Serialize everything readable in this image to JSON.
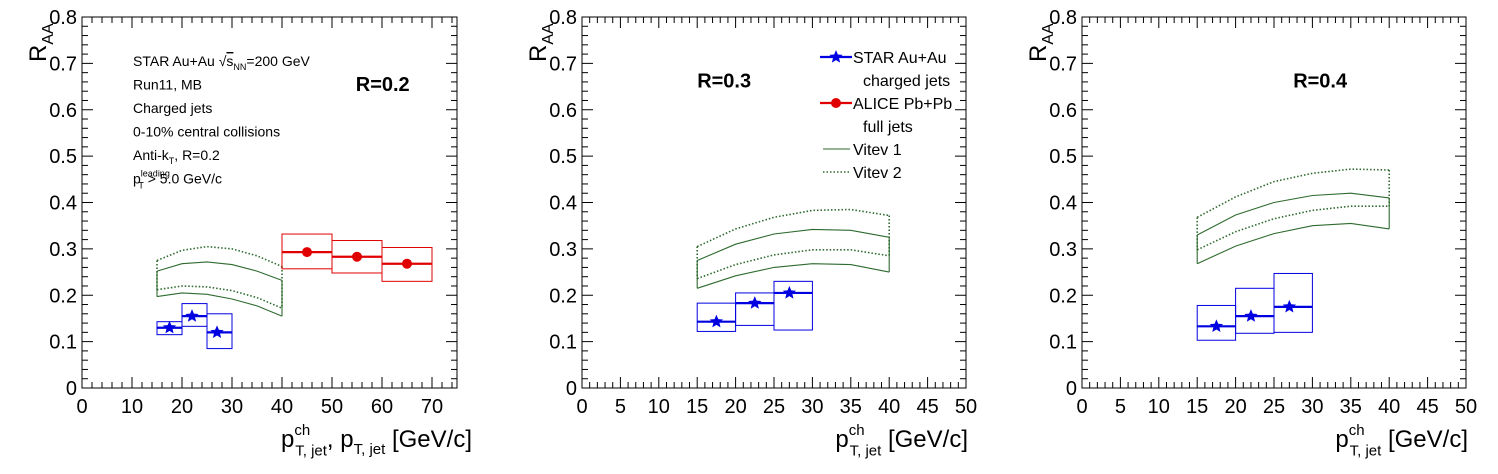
{
  "chart_data": [
    {
      "type": "scatter",
      "panel_label": "R=0.2",
      "ylabel": "R",
      "ylabel_sub": "AA",
      "xlabel_parts": [
        {
          "t": "p",
          "sup": "ch",
          "sub": "T, jet"
        },
        {
          "t": ", p",
          "sub": "T, jet"
        },
        {
          "t": " [GeV/c]"
        }
      ],
      "xlim": [
        0,
        75
      ],
      "ylim": [
        0,
        0.8
      ],
      "x_major": 10,
      "x_minor": 2,
      "y_major": 0.1,
      "y_minor": 0.02,
      "xticks": [
        "0",
        "10",
        "20",
        "30",
        "40",
        "50",
        "60",
        "70"
      ],
      "yticks": [
        "0",
        "0.1",
        "0.2",
        "0.3",
        "0.4",
        "0.5",
        "0.6",
        "0.7",
        "0.8"
      ],
      "info_lines": [
        {
          "parts": [
            {
              "t": "STAR Au+Au "
            },
            {
              "t": "s",
              "sqrt": true,
              "sub": "NN"
            },
            {
              "t": "=200 GeV"
            }
          ]
        },
        {
          "parts": [
            {
              "t": "Run11, MB"
            }
          ]
        },
        {
          "parts": [
            {
              "t": "Charged jets"
            }
          ]
        },
        {
          "parts": [
            {
              "t": "0-10% central collisions"
            }
          ]
        },
        {
          "parts": [
            {
              "t": "Anti-k"
            },
            {
              "t": "",
              "sub": "T"
            },
            {
              "t": ", R=0.2"
            }
          ]
        },
        {
          "parts": [
            {
              "t": "p",
              "sup": "leading",
              "sub": "T"
            },
            {
              "t": " > 5.0 GeV/c"
            }
          ]
        }
      ],
      "series": [
        {
          "name": "STAR Au+Au charged jets",
          "color": "#0000e0",
          "marker": "star",
          "points": [
            {
              "x": 17.5,
              "xlo": 15,
              "xhi": 20,
              "y": 0.13,
              "syslo": 0.115,
              "syshi": 0.143
            },
            {
              "x": 22.0,
              "xlo": 20,
              "xhi": 25,
              "y": 0.155,
              "syslo": 0.133,
              "syshi": 0.182
            },
            {
              "x": 27.0,
              "xlo": 25,
              "xhi": 30,
              "y": 0.12,
              "syslo": 0.085,
              "syshi": 0.16
            }
          ]
        },
        {
          "name": "ALICE Pb+Pb full jets",
          "color": "#e00000",
          "marker": "circle",
          "points": [
            {
              "x": 45,
              "xlo": 40,
              "xhi": 50,
              "y": 0.293,
              "syslo": 0.257,
              "syshi": 0.332
            },
            {
              "x": 55,
              "xlo": 50,
              "xhi": 60,
              "y": 0.283,
              "syslo": 0.248,
              "syshi": 0.318
            },
            {
              "x": 65,
              "xlo": 60,
              "xhi": 70,
              "y": 0.268,
              "syslo": 0.23,
              "syshi": 0.303
            }
          ]
        }
      ],
      "bands": [
        {
          "name": "Vitev 1",
          "style": "solid",
          "color": "#2e6b2e",
          "x": [
            15,
            20,
            25,
            30,
            35,
            40
          ],
          "upper": [
            0.252,
            0.268,
            0.272,
            0.266,
            0.252,
            0.232
          ],
          "lower": [
            0.197,
            0.205,
            0.202,
            0.192,
            0.177,
            0.155
          ]
        },
        {
          "name": "Vitev 2",
          "style": "dotted",
          "color": "#2e6b2e",
          "x": [
            15,
            20,
            25,
            30,
            35,
            40
          ],
          "upper": [
            0.275,
            0.297,
            0.305,
            0.3,
            0.285,
            0.262
          ],
          "lower": [
            0.212,
            0.22,
            0.218,
            0.21,
            0.195,
            0.172
          ]
        }
      ]
    },
    {
      "type": "scatter",
      "panel_label": "R=0.3",
      "ylabel": "R",
      "ylabel_sub": "AA",
      "xlabel_parts": [
        {
          "t": "p",
          "sup": "ch",
          "sub": "T, jet"
        },
        {
          "t": " [GeV/c]"
        }
      ],
      "xlim": [
        0,
        50
      ],
      "ylim": [
        0,
        0.8
      ],
      "x_major": 5,
      "x_minor": 1,
      "y_major": 0.1,
      "y_minor": 0.02,
      "xticks": [
        "0",
        "5",
        "10",
        "15",
        "20",
        "25",
        "30",
        "35",
        "40",
        "45",
        "50"
      ],
      "yticks": [
        "0",
        "0.1",
        "0.2",
        "0.3",
        "0.4",
        "0.5",
        "0.6",
        "0.7",
        "0.8"
      ],
      "legend": {
        "position": "top-right",
        "entries": [
          {
            "kind": "star",
            "color": "#0000e0",
            "lines": [
              "STAR Au+Au",
              "charged jets"
            ]
          },
          {
            "kind": "circle",
            "color": "#e00000",
            "lines": [
              "ALICE Pb+Pb",
              "full jets"
            ]
          },
          {
            "kind": "solid",
            "color": "#2e6b2e",
            "lines": [
              "Vitev 1"
            ]
          },
          {
            "kind": "dotted",
            "color": "#2e6b2e",
            "lines": [
              "Vitev 2"
            ]
          }
        ]
      },
      "series": [
        {
          "name": "STAR Au+Au charged jets",
          "color": "#0000e0",
          "marker": "star",
          "points": [
            {
              "x": 17.5,
              "xlo": 15,
              "xhi": 20,
              "y": 0.143,
              "syslo": 0.122,
              "syshi": 0.183
            },
            {
              "x": 22.5,
              "xlo": 20,
              "xhi": 25,
              "y": 0.183,
              "syslo": 0.135,
              "syshi": 0.205
            },
            {
              "x": 27.0,
              "xlo": 25,
              "xhi": 30,
              "y": 0.205,
              "syslo": 0.125,
              "syshi": 0.23
            }
          ]
        }
      ],
      "bands": [
        {
          "name": "Vitev 1",
          "style": "solid",
          "color": "#2e6b2e",
          "x": [
            15,
            20,
            25,
            30,
            35,
            40
          ],
          "upper": [
            0.275,
            0.31,
            0.332,
            0.342,
            0.34,
            0.325
          ],
          "lower": [
            0.215,
            0.242,
            0.26,
            0.268,
            0.266,
            0.25
          ]
        },
        {
          "name": "Vitev 2",
          "style": "dotted",
          "color": "#2e6b2e",
          "x": [
            15,
            20,
            25,
            30,
            35,
            40
          ],
          "upper": [
            0.305,
            0.343,
            0.368,
            0.383,
            0.385,
            0.372
          ],
          "lower": [
            0.236,
            0.266,
            0.287,
            0.298,
            0.298,
            0.285
          ]
        }
      ]
    },
    {
      "type": "scatter",
      "panel_label": "R=0.4",
      "ylabel": "R",
      "ylabel_sub": "AA",
      "xlabel_parts": [
        {
          "t": "p",
          "sup": "ch",
          "sub": "T, jet"
        },
        {
          "t": " [GeV/c]"
        }
      ],
      "xlim": [
        0,
        50
      ],
      "ylim": [
        0,
        0.8
      ],
      "x_major": 5,
      "x_minor": 1,
      "y_major": 0.1,
      "y_minor": 0.02,
      "xticks": [
        "0",
        "5",
        "10",
        "15",
        "20",
        "25",
        "30",
        "35",
        "40",
        "45",
        "50"
      ],
      "yticks": [
        "0",
        "0.1",
        "0.2",
        "0.3",
        "0.4",
        "0.5",
        "0.6",
        "0.7",
        "0.8"
      ],
      "series": [
        {
          "name": "STAR Au+Au charged jets",
          "color": "#0000e0",
          "marker": "star",
          "points": [
            {
              "x": 17.5,
              "xlo": 15,
              "xhi": 20,
              "y": 0.133,
              "syslo": 0.103,
              "syshi": 0.178
            },
            {
              "x": 22.0,
              "xlo": 20,
              "xhi": 25,
              "y": 0.155,
              "syslo": 0.118,
              "syshi": 0.215
            },
            {
              "x": 27.0,
              "xlo": 25,
              "xhi": 30,
              "y": 0.175,
              "syslo": 0.12,
              "syshi": 0.247
            }
          ]
        }
      ],
      "bands": [
        {
          "name": "Vitev 1",
          "style": "solid",
          "color": "#2e6b2e",
          "x": [
            15,
            20,
            25,
            30,
            35,
            40
          ],
          "upper": [
            0.33,
            0.373,
            0.4,
            0.415,
            0.42,
            0.41
          ],
          "lower": [
            0.268,
            0.306,
            0.333,
            0.35,
            0.355,
            0.343
          ]
        },
        {
          "name": "Vitev 2",
          "style": "dotted",
          "color": "#2e6b2e",
          "x": [
            15,
            20,
            25,
            30,
            35,
            40
          ],
          "upper": [
            0.368,
            0.412,
            0.445,
            0.463,
            0.472,
            0.47
          ],
          "lower": [
            0.298,
            0.337,
            0.365,
            0.383,
            0.392,
            0.392
          ]
        }
      ]
    }
  ]
}
